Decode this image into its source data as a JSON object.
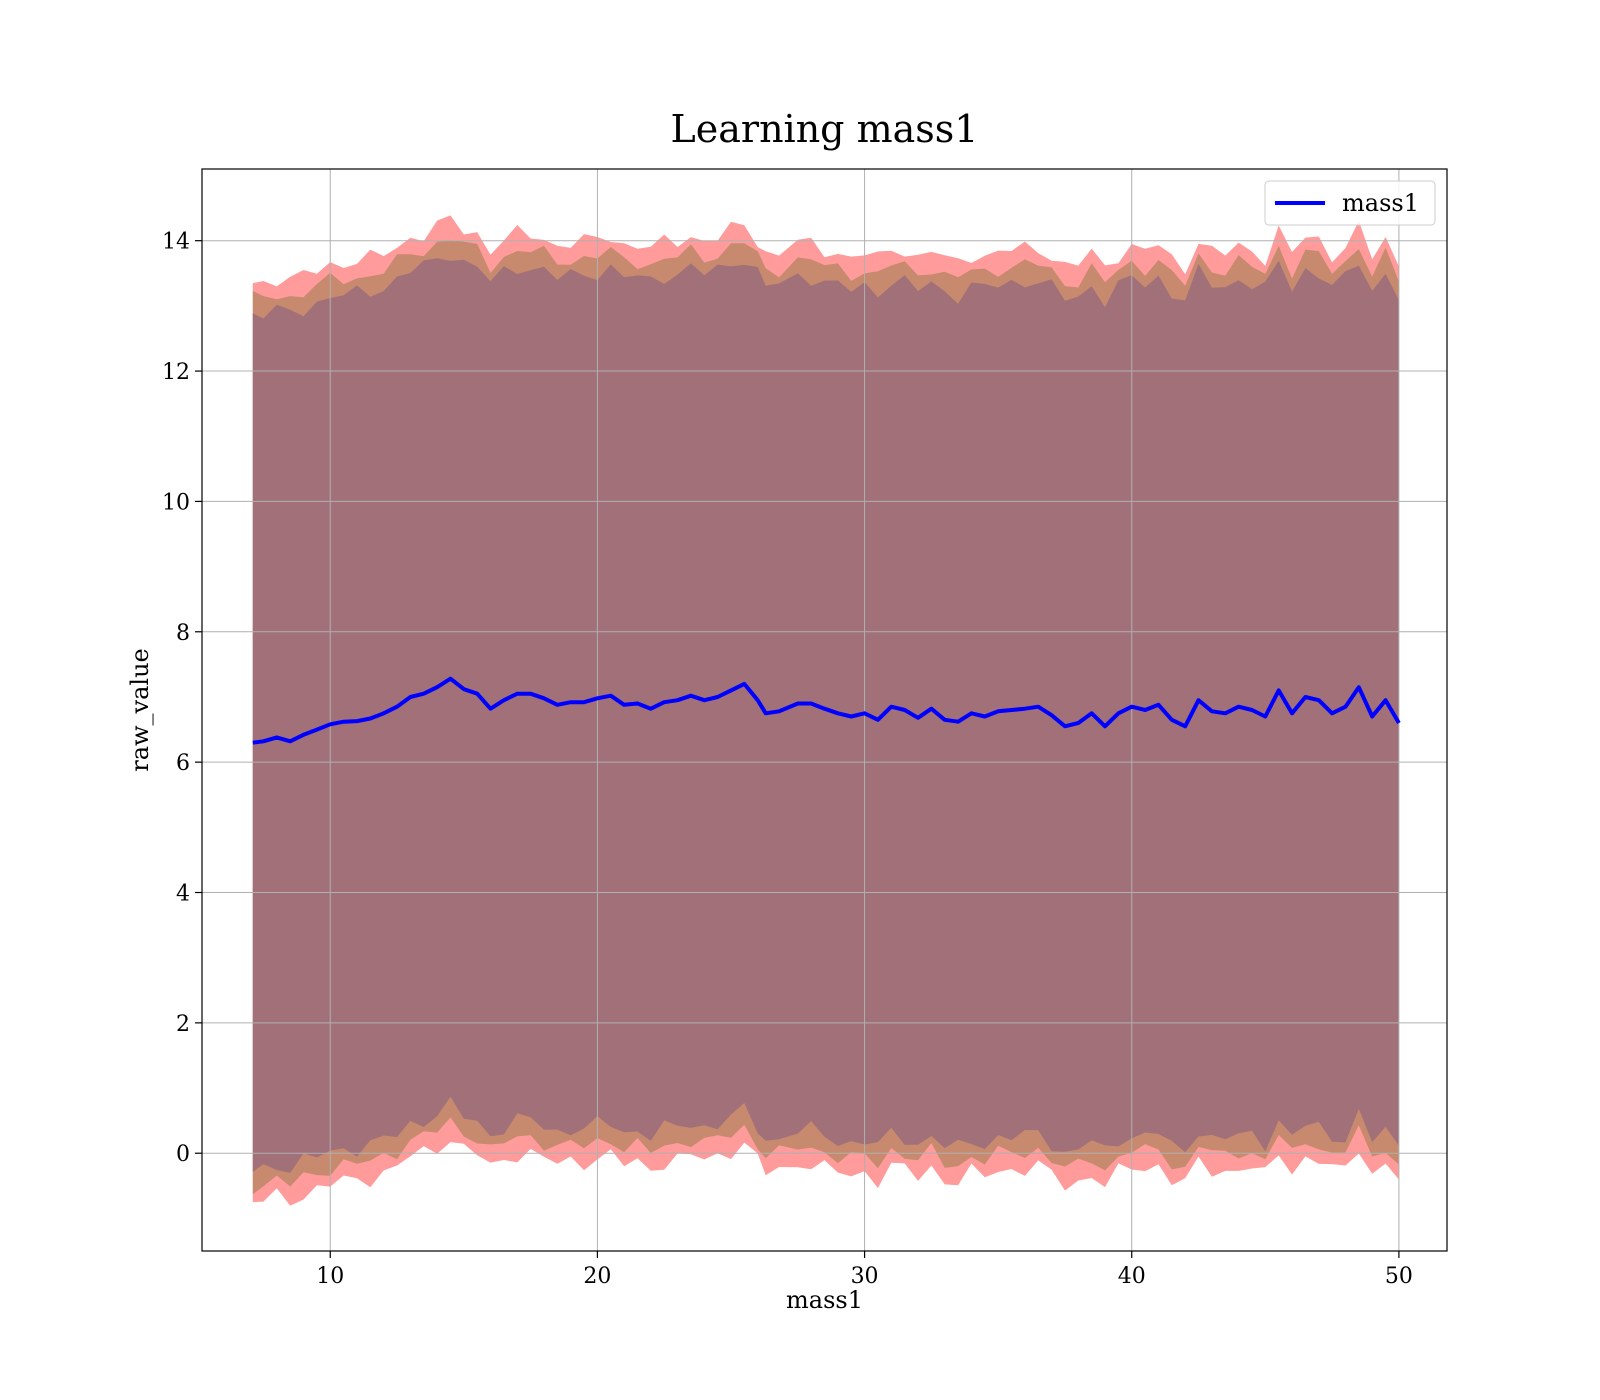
{
  "chart_data": {
    "type": "line",
    "title": "Learning mass1",
    "xlabel": "mass1",
    "ylabel": "raw_value",
    "xlim": [
      5.2,
      51.8
    ],
    "ylim": [
      -1.5,
      15.1
    ],
    "xticks": [
      10,
      20,
      30,
      40,
      50
    ],
    "yticks": [
      0,
      2,
      4,
      6,
      8,
      10,
      12,
      14
    ],
    "grid": true,
    "legend": {
      "position": "top-right",
      "entries": [
        "mass1"
      ]
    },
    "colors": {
      "line": "#0000ff",
      "band_outer": "#ff9b9b",
      "band_middle": "#c78a6e",
      "band_inner": "#a17079"
    },
    "series": [
      {
        "name": "mass1",
        "x": [
          7.1,
          7.5,
          8.0,
          8.5,
          9.0,
          9.5,
          10.0,
          10.5,
          11.0,
          11.5,
          12.0,
          12.5,
          13.0,
          13.5,
          14.0,
          14.5,
          15.0,
          15.5,
          16.0,
          16.5,
          17.0,
          17.5,
          18.0,
          18.5,
          19.0,
          19.5,
          20.0,
          20.5,
          21.0,
          21.5,
          22.0,
          22.5,
          23.0,
          23.5,
          24.0,
          24.5,
          25.0,
          25.5,
          26.0,
          26.3,
          26.8,
          27.5,
          28.0,
          28.5,
          29.0,
          29.5,
          30.0,
          30.5,
          31.0,
          31.5,
          32.0,
          32.5,
          33.0,
          33.5,
          34.0,
          34.5,
          35.0,
          35.5,
          36.0,
          36.5,
          37.0,
          37.5,
          38.0,
          38.5,
          39.0,
          39.5,
          40.0,
          40.5,
          41.0,
          41.5,
          42.0,
          42.5,
          43.0,
          43.5,
          44.0,
          44.5,
          45.0,
          45.5,
          46.0,
          46.5,
          47.0,
          47.5,
          48.0,
          48.5,
          49.0,
          49.5,
          50.0
        ],
        "y": [
          6.3,
          6.32,
          6.38,
          6.32,
          6.42,
          6.5,
          6.58,
          6.62,
          6.63,
          6.67,
          6.75,
          6.85,
          7.0,
          7.05,
          7.15,
          7.28,
          7.12,
          7.05,
          6.82,
          6.95,
          7.05,
          7.05,
          6.98,
          6.88,
          6.92,
          6.92,
          6.98,
          7.02,
          6.88,
          6.9,
          6.82,
          6.92,
          6.95,
          7.02,
          6.95,
          7.0,
          7.1,
          7.2,
          6.95,
          6.75,
          6.78,
          6.9,
          6.9,
          6.82,
          6.75,
          6.7,
          6.75,
          6.65,
          6.85,
          6.8,
          6.68,
          6.82,
          6.65,
          6.62,
          6.75,
          6.7,
          6.78,
          6.8,
          6.82,
          6.85,
          6.72,
          6.55,
          6.6,
          6.75,
          6.55,
          6.75,
          6.85,
          6.8,
          6.88,
          6.65,
          6.55,
          6.95,
          6.78,
          6.75,
          6.85,
          6.8,
          6.7,
          7.1,
          6.75,
          7.0,
          6.95,
          6.75,
          6.85,
          7.15,
          6.7,
          6.95,
          6.6
        ]
      }
    ],
    "bands": [
      {
        "level": "outer",
        "half_width": 7.05
      },
      {
        "level": "middle",
        "half_width": 6.8
      },
      {
        "level": "inner",
        "half_width": 6.55
      }
    ]
  }
}
